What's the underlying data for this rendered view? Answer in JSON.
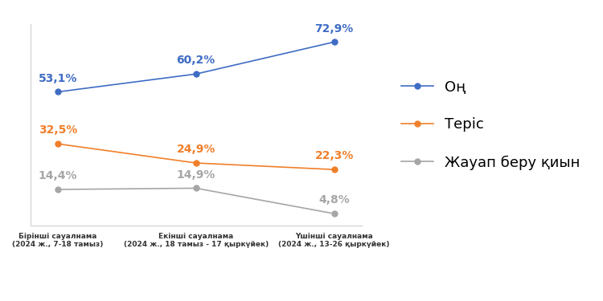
{
  "chart_data": {
    "type": "line",
    "categories": [
      "Бірінші сауалнама\n(2024 ж., 7-18 тамыз)",
      "Екінші сауалнама\n(2024 ж., 18 тамыз - 17 қыркүйек)",
      "Үшінші сауалнама\n(2024 ж., 13-26 қыркүйек)"
    ],
    "series": [
      {
        "name": "Оң",
        "color": "#3f6cc4",
        "marker": "circle",
        "values": [
          53.1,
          60.2,
          72.9
        ],
        "value_labels": [
          "53,1%",
          "60,2%",
          "72,9%"
        ]
      },
      {
        "name": "Теріс",
        "color": "#f07f2a",
        "marker": "circle",
        "values": [
          32.5,
          24.9,
          22.3
        ],
        "value_labels": [
          "32,5%",
          "24,9%",
          "22,3%"
        ]
      },
      {
        "name": "Жауап беру қиын",
        "color": "#a6a6a6",
        "marker": "circle",
        "values": [
          14.4,
          14.9,
          4.8
        ],
        "value_labels": [
          "14,4%",
          "14,9%",
          "4,8%"
        ]
      }
    ],
    "ylim": [
      0,
      80
    ],
    "tick_labels": "x",
    "data_labels": true,
    "grid": false,
    "legend": "right"
  }
}
